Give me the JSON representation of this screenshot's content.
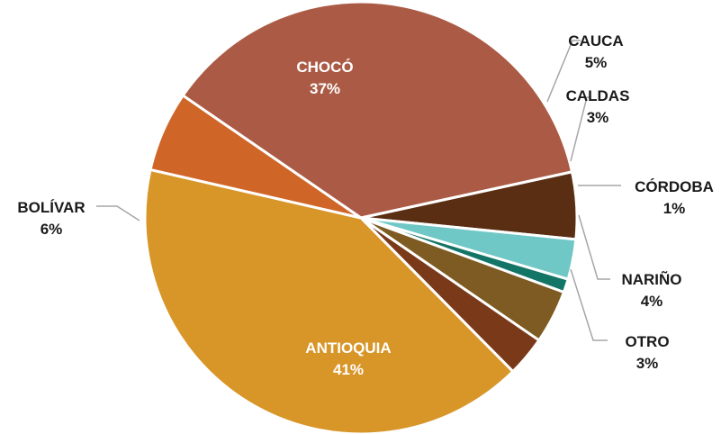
{
  "chart_data": {
    "type": "pie",
    "title": "",
    "slices": [
      {
        "label": "CHOCÓ",
        "value": 37,
        "display": "37%",
        "color": "#AB5B45"
      },
      {
        "label": "CAUCA",
        "value": 5,
        "display": "5%",
        "color": "#5A2E12"
      },
      {
        "label": "CALDAS",
        "value": 3,
        "display": "3%",
        "color": "#6FC8C6"
      },
      {
        "label": "CÓRDOBA",
        "value": 1,
        "display": "1%",
        "color": "#137566"
      },
      {
        "label": "NARIÑO",
        "value": 4,
        "display": "4%",
        "color": "#7E5B22"
      },
      {
        "label": "OTRO",
        "value": 3,
        "display": "3%",
        "color": "#7A3A1A"
      },
      {
        "label": "ANTIOQUIA",
        "value": 41,
        "display": "41%",
        "color": "#D89528"
      },
      {
        "label": "BOLÍVAR",
        "value": 6,
        "display": "6%",
        "color": "#CF6628"
      }
    ]
  }
}
